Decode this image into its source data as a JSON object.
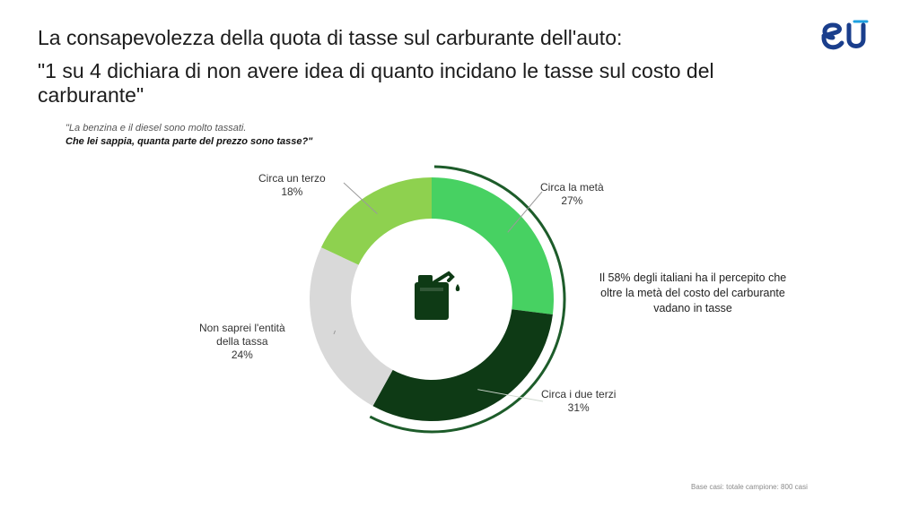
{
  "header": {
    "title": "La consapevolezza della quota di tasse sul carburante dell'auto:",
    "subtitle": "\"1 su 4 dichiara di non avere idea di quanto incidano le tasse sul costo del carburante\""
  },
  "question": {
    "line1": "\"La benzina e il diesel sono molto tassati.",
    "line2": "Che lei sappia, quanta parte del prezzo sono tasse?\""
  },
  "logo": {
    "text": "eU",
    "icon": "eu-logo-icon",
    "color": "#1a3e8c",
    "accent": "#1ea0e0"
  },
  "center_icon": "fuel-jerrycan-icon",
  "callout": {
    "text": "Il 58% degli italiani ha il percepito che oltre la metà del costo del carburante vadano in tasse"
  },
  "footer": {
    "text": "Base casi: totale campione: 800 casi"
  },
  "chart_data": {
    "type": "pie",
    "variant": "donut",
    "title": "",
    "slices": [
      {
        "label": "Circa la metà",
        "value": 27,
        "value_label": "27%",
        "color": "#47d162"
      },
      {
        "label": "Circa i due terzi",
        "value": 31,
        "value_label": "31%",
        "color": "#0e3a15"
      },
      {
        "label": "Non saprei l'entità della tassa",
        "label_lines": [
          "Non saprei l'entità",
          "della tassa"
        ],
        "value": 24,
        "value_label": "24%",
        "color": "#d9d9d9"
      },
      {
        "label": "Circa un terzo",
        "value": 18,
        "value_label": "18%",
        "color": "#8ed14f"
      }
    ],
    "highlight_arc": {
      "covers": [
        "Circa la metà",
        "Circa i due terzi"
      ],
      "total": 58,
      "color": "#1d5c2a"
    }
  }
}
